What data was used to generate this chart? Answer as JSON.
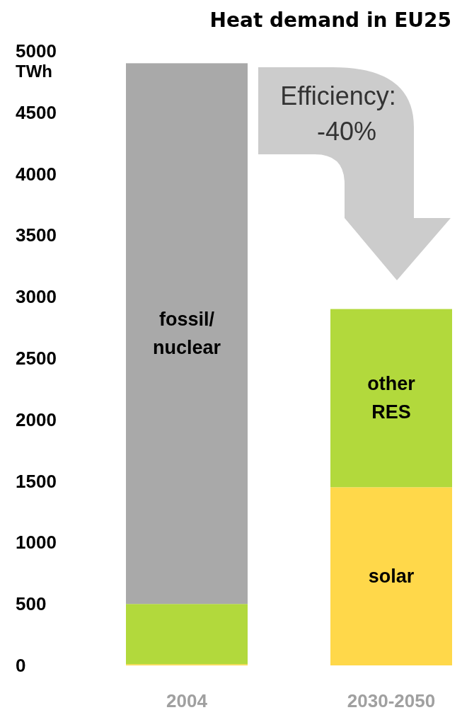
{
  "chart_data": {
    "type": "bar",
    "title": "Heat demand in EU25",
    "ylabel": "TWh",
    "categories": [
      "2004",
      "2030-2050"
    ],
    "stacked": true,
    "series": [
      {
        "name": "solar",
        "color": "#ffd84a",
        "values": [
          10,
          1450
        ]
      },
      {
        "name": "other RES",
        "color": "#b2d93c",
        "values": [
          490,
          1450
        ]
      },
      {
        "name": "fossil/nuclear",
        "color": "#a9a9a9",
        "values": [
          4400,
          null
        ]
      }
    ],
    "ylim": [
      0,
      5000
    ],
    "yticks": [
      0,
      500,
      1000,
      1500,
      2000,
      2500,
      3000,
      3500,
      4000,
      4500,
      5000
    ],
    "annotations": [
      "Efficiency: -40%"
    ],
    "grid": false
  }
}
